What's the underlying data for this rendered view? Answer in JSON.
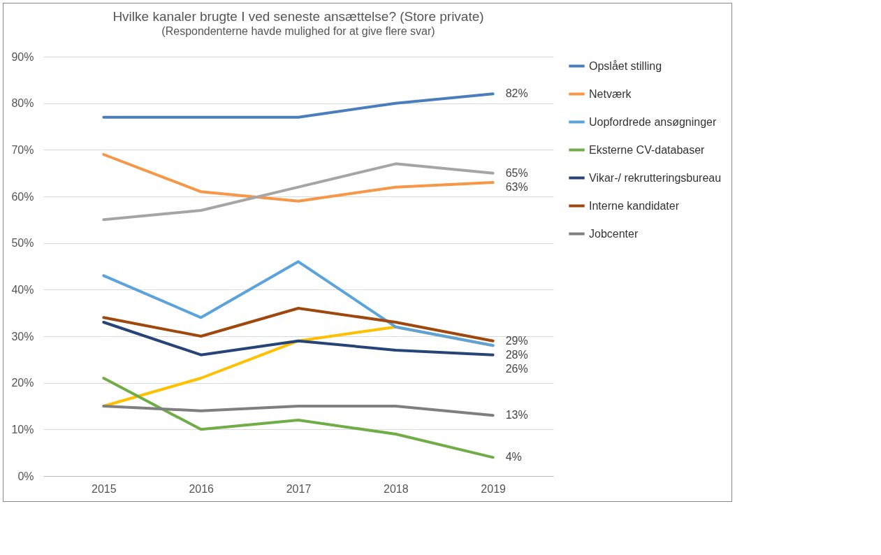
{
  "chart_data": {
    "type": "line",
    "title": "Hvilke kanaler brugte I ved seneste ansættelse? (Store private)",
    "subtitle": "(Respondenterne havde mulighed for at give flere svar)",
    "categories": [
      "2015",
      "2016",
      "2017",
      "2018",
      "2019"
    ],
    "series": [
      {
        "name": "Opslået stilling",
        "color": "#4a7ebb",
        "values": [
          77,
          77,
          77,
          80,
          82
        ],
        "value_labels": [
          null,
          null,
          null,
          null,
          "82%"
        ]
      },
      {
        "name": "Netværk",
        "color": "#f79646",
        "values": [
          69,
          61,
          59,
          62,
          63
        ],
        "value_labels": [
          null,
          null,
          null,
          null,
          "63%"
        ]
      },
      {
        "color": "#a5a5a5",
        "values": [
          55,
          57,
          62,
          67,
          65
        ],
        "value_labels": [
          null,
          null,
          null,
          null,
          "65%"
        ]
      },
      {
        "color": "#ffc000",
        "values": [
          15,
          21,
          29,
          32,
          28
        ],
        "value_labels": [
          null,
          null,
          null,
          null,
          null
        ]
      },
      {
        "name": "Uopfordrede ansøgninger",
        "color": "#5ba3dc",
        "values": [
          43,
          34,
          46,
          32,
          28
        ],
        "value_labels": [
          null,
          null,
          null,
          null,
          "28%"
        ]
      },
      {
        "name": "Eksterne CV-databaser",
        "color": "#70ad47",
        "values": [
          21,
          10,
          12,
          9,
          4
        ],
        "value_labels": [
          null,
          null,
          null,
          null,
          "4%"
        ]
      },
      {
        "name": "Vikar-/ rekrutteringsbureau",
        "color": "#264478",
        "values": [
          33,
          26,
          29,
          27,
          26
        ],
        "value_labels": [
          null,
          null,
          null,
          null,
          "26%"
        ]
      },
      {
        "name": "Interne kandidater",
        "color": "#9e480e",
        "values": [
          34,
          30,
          36,
          33,
          29
        ],
        "value_labels": [
          null,
          null,
          null,
          null,
          "29%"
        ]
      },
      {
        "name": "Jobcenter",
        "color": "#7f7f7f",
        "values": [
          15,
          14,
          15,
          15,
          13
        ],
        "value_labels": [
          null,
          null,
          null,
          null,
          "13%"
        ]
      }
    ],
    "ylim": [
      0,
      90
    ],
    "yticks": [
      {
        "value": 0,
        "label": "0%"
      },
      {
        "value": 10,
        "label": "10%"
      },
      {
        "value": 20,
        "label": "20%"
      },
      {
        "value": 30,
        "label": "30%"
      },
      {
        "value": 40,
        "label": "40%"
      },
      {
        "value": 50,
        "label": "50%"
      },
      {
        "value": 60,
        "label": "60%"
      },
      {
        "value": 70,
        "label": "70%"
      },
      {
        "value": 80,
        "label": "80%"
      },
      {
        "value": 90,
        "label": "90%"
      }
    ],
    "grid": "y",
    "legend": "right",
    "marker": "none",
    "line_style": "solid"
  }
}
